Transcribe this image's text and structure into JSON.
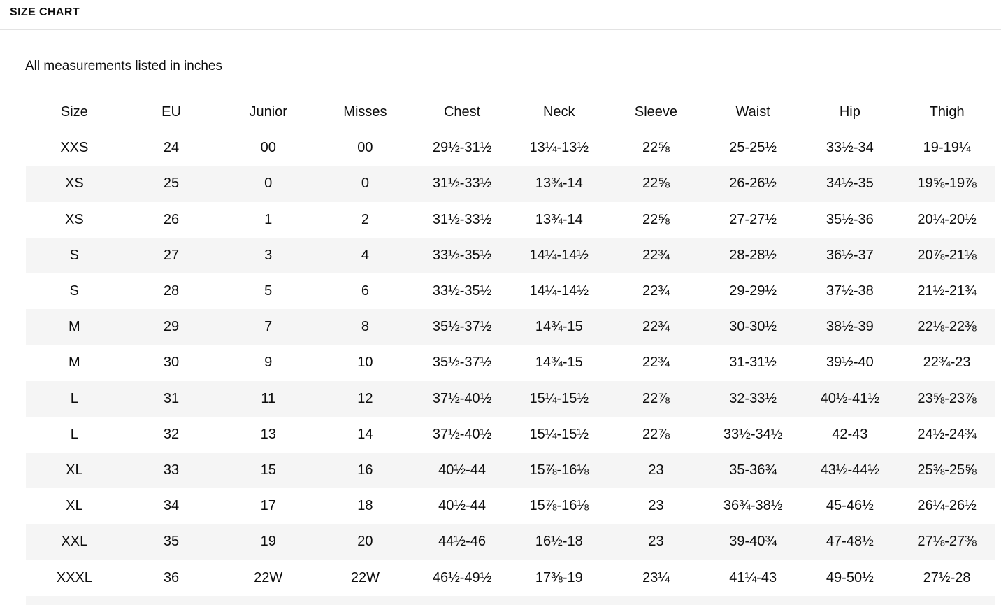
{
  "page": {
    "title": "SIZE CHART",
    "subtitle": "All measurements listed in inches"
  },
  "colors": {
    "text": "#0d0d0d",
    "row_stripe": "#f5f5f5",
    "divider": "#e3e3e3",
    "background": "#ffffff"
  },
  "table": {
    "columns": [
      "Size",
      "EU",
      "Junior",
      "Misses",
      "Chest",
      "Neck",
      "Sleeve",
      "Waist",
      "Hip",
      "Thigh"
    ],
    "rows": [
      [
        "XXS",
        "24",
        "00",
        "00",
        "29½-31½",
        "13¼-13½",
        "22⅝",
        "25-25½",
        "33½-34",
        "19-19¼"
      ],
      [
        "XS",
        "25",
        "0",
        "0",
        "31½-33½",
        "13¾-14",
        "22⅝",
        "26-26½",
        "34½-35",
        "19⅝-19⅞"
      ],
      [
        "XS",
        "26",
        "1",
        "2",
        "31½-33½",
        "13¾-14",
        "22⅝",
        "27-27½",
        "35½-36",
        "20¼-20½"
      ],
      [
        "S",
        "27",
        "3",
        "4",
        "33½-35½",
        "14¼-14½",
        "22¾",
        "28-28½",
        "36½-37",
        "20⅞-21⅛"
      ],
      [
        "S",
        "28",
        "5",
        "6",
        "33½-35½",
        "14¼-14½",
        "22¾",
        "29-29½",
        "37½-38",
        "21½-21¾"
      ],
      [
        "M",
        "29",
        "7",
        "8",
        "35½-37½",
        "14¾-15",
        "22¾",
        "30-30½",
        "38½-39",
        "22⅛-22⅜"
      ],
      [
        "M",
        "30",
        "9",
        "10",
        "35½-37½",
        "14¾-15",
        "22¾",
        "31-31½",
        "39½-40",
        "22¾-23"
      ],
      [
        "L",
        "31",
        "11",
        "12",
        "37½-40½",
        "15¼-15½",
        "22⅞",
        "32-33½",
        "40½-41½",
        "23⅝-23⅞"
      ],
      [
        "L",
        "32",
        "13",
        "14",
        "37½-40½",
        "15¼-15½",
        "22⅞",
        "33½-34½",
        "42-43",
        "24½-24¾"
      ],
      [
        "XL",
        "33",
        "15",
        "16",
        "40½-44",
        "15⅞-16⅛",
        "23",
        "35-36¾",
        "43½-44½",
        "25⅜-25⅝"
      ],
      [
        "XL",
        "34",
        "17",
        "18",
        "40½-44",
        "15⅞-16⅛",
        "23",
        "36¾-38½",
        "45-46½",
        "26¼-26½"
      ],
      [
        "XXL",
        "35",
        "19",
        "20",
        "44½-46",
        "16½-18",
        "23",
        "39-40¾",
        "47-48½",
        "27⅛-27⅜"
      ],
      [
        "XXXL",
        "36",
        "22W",
        "22W",
        "46½-49½",
        "17⅜-19",
        "23¼",
        "41¼-43",
        "49-50½",
        "27½-28"
      ]
    ]
  }
}
